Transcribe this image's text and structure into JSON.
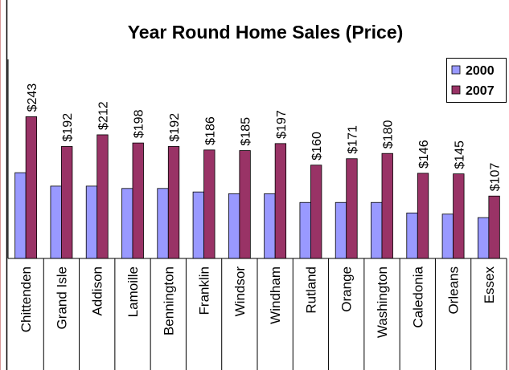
{
  "chart_data": {
    "type": "bar",
    "title": "Year Round Home Sales (Price)",
    "categories": [
      "Chittenden",
      "Grand Isle",
      "Addison",
      "Lamoille",
      "Bennington",
      "Franklin",
      "Windsor",
      "Windham",
      "Rutland",
      "Orange",
      "Washington",
      "Caledonia",
      "Orleans",
      "Essex"
    ],
    "series": [
      {
        "name": "2000",
        "color": "#9999ff",
        "values": [
          147,
          124,
          124,
          120,
          120,
          114,
          111,
          111,
          96,
          96,
          96,
          78,
          76,
          70
        ]
      },
      {
        "name": "2007",
        "color": "#993366",
        "values": [
          243,
          192,
          212,
          198,
          192,
          186,
          185,
          197,
          160,
          171,
          180,
          146,
          145,
          107
        ],
        "value_labels": [
          "$243",
          "$192",
          "$212",
          "$198",
          "$192",
          "$186",
          "$185",
          "$197",
          "$160",
          "$171",
          "$180",
          "$146",
          "$145",
          "$107"
        ]
      }
    ],
    "ylim": [
      0,
      300
    ],
    "legend": "top-right"
  }
}
